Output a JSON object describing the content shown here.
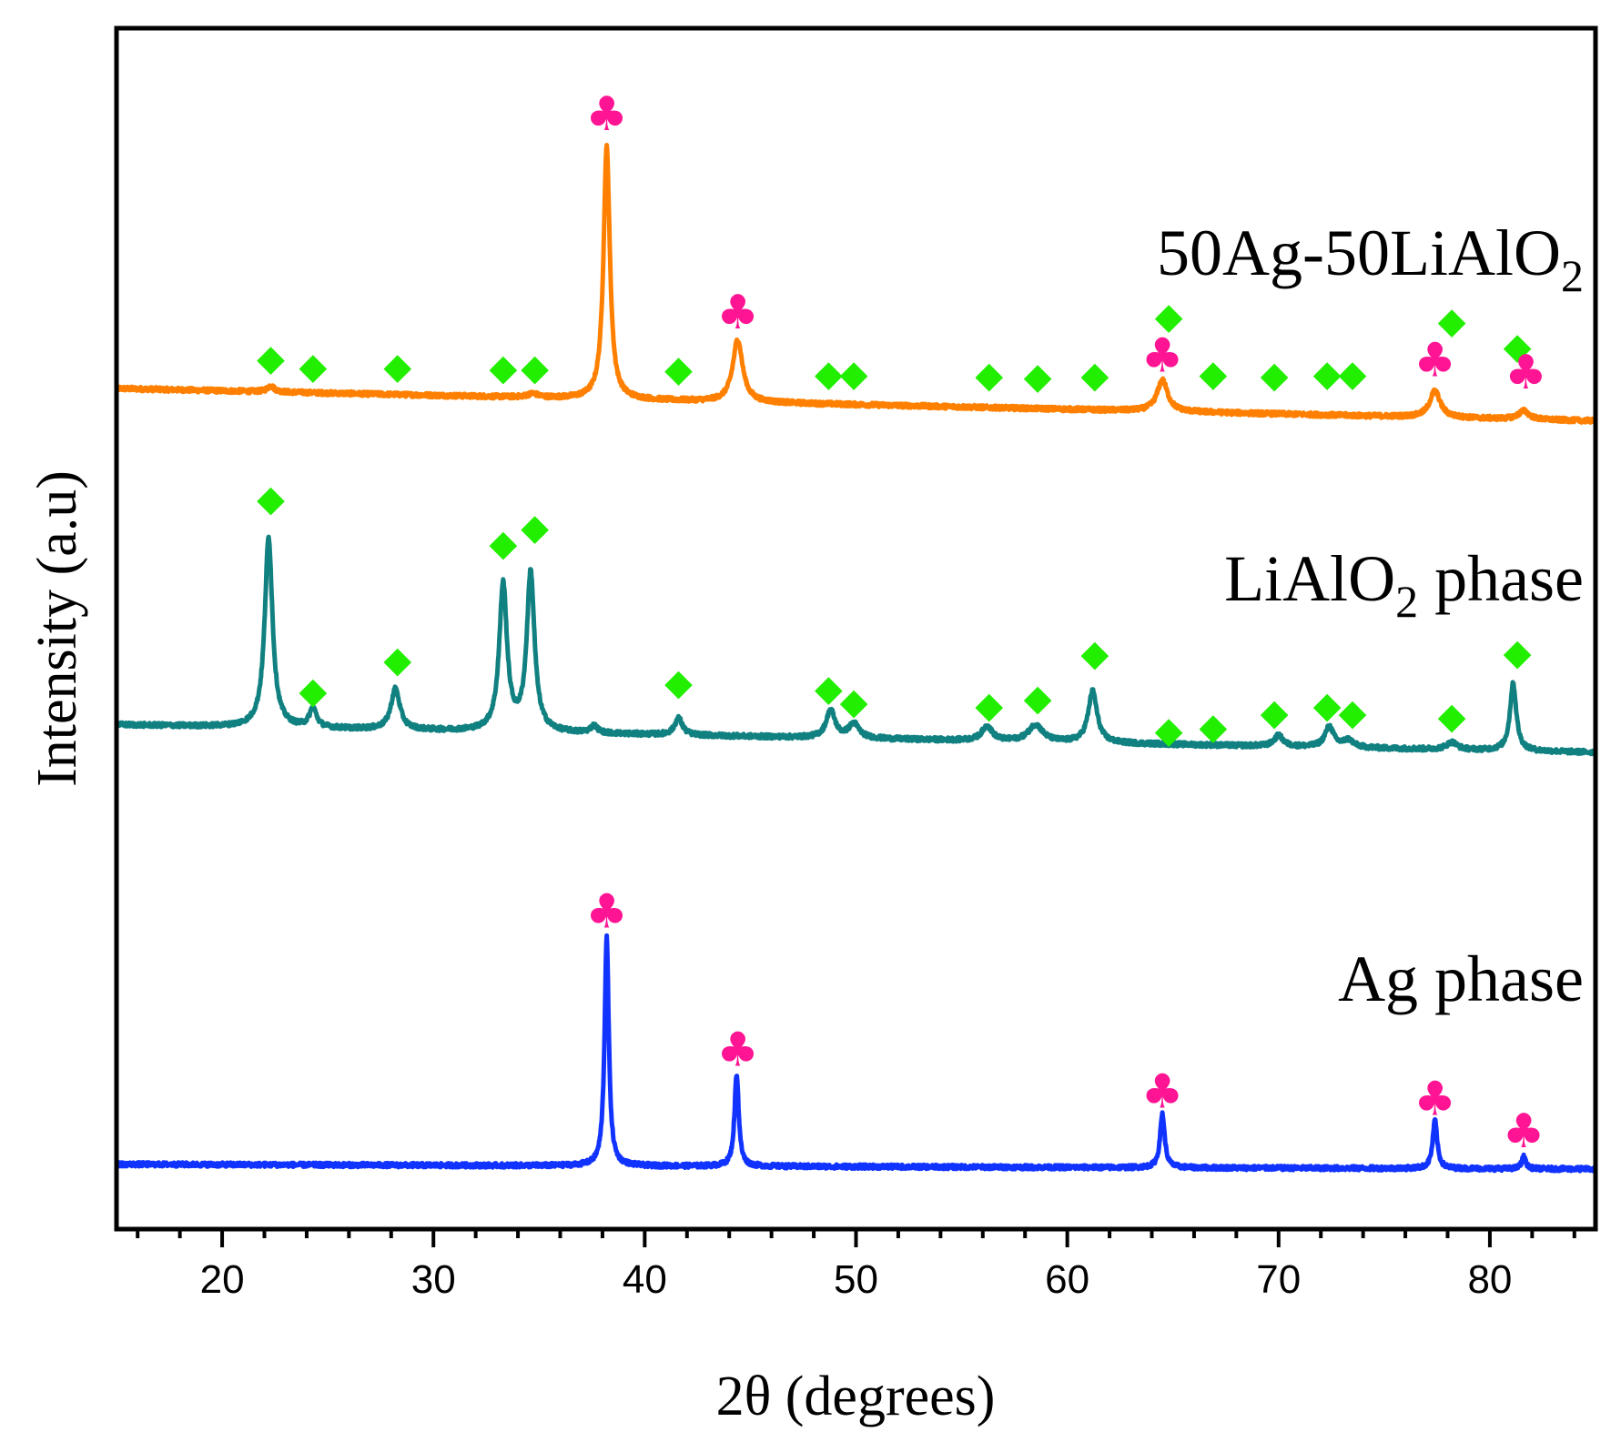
{
  "chart_data": {
    "type": "line",
    "title": "",
    "xlabel": "2θ (degrees)",
    "ylabel": "Intensity (a.u)",
    "xlim": [
      15,
      85
    ],
    "xticks": [
      20,
      30,
      40,
      50,
      60,
      70,
      80
    ],
    "xtick_labels": [
      "20",
      "30",
      "40",
      "50",
      "60",
      "70",
      "80"
    ],
    "y_units": "arbitrary (stacked offsets)",
    "ylim": [
      0,
      100
    ],
    "legend": "inline labels at right of each trace",
    "marker_legend": {
      "club": {
        "symbol": "♣",
        "phase": "Ag",
        "color": "#ff1493"
      },
      "diamond": {
        "symbol": "◆",
        "phase": "LiAlO2",
        "color": "#22ee00"
      }
    },
    "series": [
      {
        "name": "50Ag-50LiAlO2",
        "label_main": "50Ag-50LiAlO",
        "label_sub": "2",
        "label_tail": "",
        "color": "#ff8000",
        "baseline_start": 70.0,
        "baseline_end": 67.3,
        "peaks": [
          {
            "x": 38.2,
            "h": 21.0,
            "w": 0.18
          },
          {
            "x": 44.4,
            "h": 5.2,
            "w": 0.28
          },
          {
            "x": 64.5,
            "h": 2.6,
            "w": 0.3
          },
          {
            "x": 77.4,
            "h": 2.2,
            "w": 0.3
          },
          {
            "x": 81.6,
            "h": 0.7,
            "w": 0.3
          },
          {
            "x": 22.3,
            "h": 0.5,
            "w": 0.2
          },
          {
            "x": 34.7,
            "h": 0.3,
            "w": 0.3
          }
        ],
        "markers": [
          {
            "x": 22.3,
            "y": 72.5,
            "kind": "diamond"
          },
          {
            "x": 24.3,
            "y": 71.8,
            "kind": "diamond"
          },
          {
            "x": 28.3,
            "y": 71.8,
            "kind": "diamond"
          },
          {
            "x": 33.3,
            "y": 71.7,
            "kind": "diamond"
          },
          {
            "x": 34.8,
            "y": 71.7,
            "kind": "diamond"
          },
          {
            "x": 38.2,
            "y": 92.8,
            "kind": "club"
          },
          {
            "x": 41.6,
            "y": 71.6,
            "kind": "diamond"
          },
          {
            "x": 44.4,
            "y": 76.3,
            "kind": "club"
          },
          {
            "x": 48.7,
            "y": 71.2,
            "kind": "diamond"
          },
          {
            "x": 49.9,
            "y": 71.2,
            "kind": "diamond"
          },
          {
            "x": 56.3,
            "y": 71.1,
            "kind": "diamond"
          },
          {
            "x": 58.6,
            "y": 71.0,
            "kind": "diamond"
          },
          {
            "x": 61.3,
            "y": 71.1,
            "kind": "diamond"
          },
          {
            "x": 64.8,
            "y": 76.0,
            "kind": "diamond"
          },
          {
            "x": 64.5,
            "y": 72.7,
            "kind": "club"
          },
          {
            "x": 66.9,
            "y": 71.2,
            "kind": "diamond"
          },
          {
            "x": 69.8,
            "y": 71.1,
            "kind": "diamond"
          },
          {
            "x": 72.3,
            "y": 71.2,
            "kind": "diamond"
          },
          {
            "x": 73.5,
            "y": 71.2,
            "kind": "diamond"
          },
          {
            "x": 78.2,
            "y": 75.6,
            "kind": "diamond"
          },
          {
            "x": 77.4,
            "y": 72.3,
            "kind": "club"
          },
          {
            "x": 81.3,
            "y": 73.5,
            "kind": "diamond"
          },
          {
            "x": 81.7,
            "y": 71.3,
            "kind": "club"
          }
        ]
      },
      {
        "name": "LiAlO2 phase",
        "label_main": "LiAlO",
        "label_sub": "2",
        "label_tail": " phase",
        "color": "#118080",
        "baseline_start": 42.0,
        "baseline_end": 39.7,
        "peaks": [
          {
            "x": 22.2,
            "h": 15.8,
            "w": 0.22
          },
          {
            "x": 24.3,
            "h": 1.6,
            "w": 0.2
          },
          {
            "x": 28.2,
            "h": 3.4,
            "w": 0.25
          },
          {
            "x": 33.3,
            "h": 12.2,
            "w": 0.22
          },
          {
            "x": 34.6,
            "h": 13.2,
            "w": 0.22
          },
          {
            "x": 37.6,
            "h": 0.6,
            "w": 0.2
          },
          {
            "x": 41.6,
            "h": 1.4,
            "w": 0.22
          },
          {
            "x": 48.8,
            "h": 2.3,
            "w": 0.25
          },
          {
            "x": 49.9,
            "h": 1.2,
            "w": 0.3
          },
          {
            "x": 56.2,
            "h": 1.2,
            "w": 0.3
          },
          {
            "x": 58.5,
            "h": 1.4,
            "w": 0.4
          },
          {
            "x": 61.2,
            "h": 4.3,
            "w": 0.25
          },
          {
            "x": 70.0,
            "h": 0.9,
            "w": 0.25
          },
          {
            "x": 72.4,
            "h": 1.7,
            "w": 0.25
          },
          {
            "x": 73.3,
            "h": 0.6,
            "w": 0.3
          },
          {
            "x": 78.2,
            "h": 0.6,
            "w": 0.3
          },
          {
            "x": 81.1,
            "h": 5.6,
            "w": 0.18
          }
        ],
        "markers": [
          {
            "x": 22.3,
            "y": 60.8,
            "kind": "diamond"
          },
          {
            "x": 24.3,
            "y": 44.8,
            "kind": "diamond"
          },
          {
            "x": 28.3,
            "y": 47.4,
            "kind": "diamond"
          },
          {
            "x": 33.3,
            "y": 57.1,
            "kind": "diamond"
          },
          {
            "x": 34.8,
            "y": 58.4,
            "kind": "diamond"
          },
          {
            "x": 41.6,
            "y": 45.5,
            "kind": "diamond"
          },
          {
            "x": 48.7,
            "y": 45.0,
            "kind": "diamond"
          },
          {
            "x": 49.9,
            "y": 43.9,
            "kind": "diamond"
          },
          {
            "x": 56.3,
            "y": 43.6,
            "kind": "diamond"
          },
          {
            "x": 58.6,
            "y": 44.2,
            "kind": "diamond"
          },
          {
            "x": 61.3,
            "y": 47.9,
            "kind": "diamond"
          },
          {
            "x": 64.8,
            "y": 41.5,
            "kind": "diamond"
          },
          {
            "x": 66.9,
            "y": 41.8,
            "kind": "diamond"
          },
          {
            "x": 69.8,
            "y": 43.0,
            "kind": "diamond"
          },
          {
            "x": 72.3,
            "y": 43.6,
            "kind": "diamond"
          },
          {
            "x": 73.5,
            "y": 43.0,
            "kind": "diamond"
          },
          {
            "x": 78.2,
            "y": 42.7,
            "kind": "diamond"
          },
          {
            "x": 81.3,
            "y": 48.0,
            "kind": "diamond"
          }
        ]
      },
      {
        "name": "Ag phase",
        "label_main": "Ag phase",
        "label_sub": "",
        "label_tail": "",
        "color": "#1133ff",
        "baseline_start": 5.4,
        "baseline_end": 5.0,
        "peaks": [
          {
            "x": 38.2,
            "h": 19.0,
            "w": 0.12
          },
          {
            "x": 44.35,
            "h": 7.7,
            "w": 0.12
          },
          {
            "x": 64.5,
            "h": 4.5,
            "w": 0.13
          },
          {
            "x": 77.4,
            "h": 4.0,
            "w": 0.13
          },
          {
            "x": 81.6,
            "h": 1.0,
            "w": 0.12
          }
        ],
        "markers": [
          {
            "x": 38.2,
            "y": 26.4,
            "kind": "club"
          },
          {
            "x": 44.4,
            "y": 14.9,
            "kind": "club"
          },
          {
            "x": 64.5,
            "y": 11.4,
            "kind": "club"
          },
          {
            "x": 77.4,
            "y": 10.8,
            "kind": "club"
          },
          {
            "x": 81.6,
            "y": 8.1,
            "kind": "club"
          }
        ]
      }
    ]
  }
}
